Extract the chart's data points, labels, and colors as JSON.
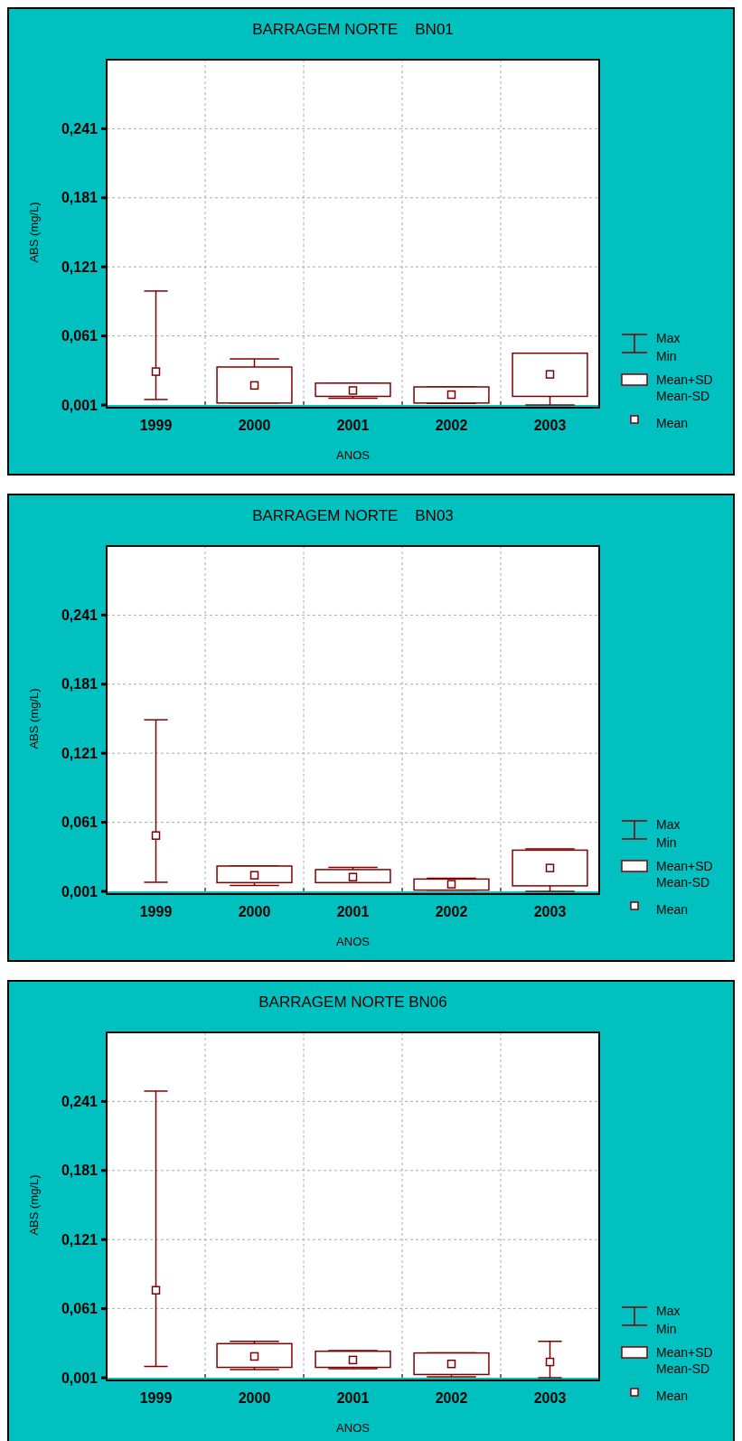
{
  "chart_data": [
    {
      "type": "box",
      "title": "BARRAGEM NORTE    BN01",
      "xlabel": "ANOS",
      "ylabel": "ABS (mg/L)",
      "categories": [
        "1999",
        "2000",
        "2001",
        "2002",
        "2003"
      ],
      "ylim": [
        0.001,
        0.301
      ],
      "yticks": [
        {
          "value": 0.001,
          "label": "0,001"
        },
        {
          "value": 0.061,
          "label": "0,061"
        },
        {
          "value": 0.121,
          "label": "0,121"
        },
        {
          "value": 0.181,
          "label": "0,181"
        },
        {
          "value": 0.241,
          "label": "0,241"
        }
      ],
      "grid": true,
      "annotations": [
        "Max",
        "Min",
        "Mean+SD",
        "Mean-SD",
        "Mean"
      ],
      "series": [
        {
          "color": "#800000",
          "boxes": [
            null,
            {
              "low": 0.0027,
              "q1": 0.0027,
              "q3": 0.034,
              "high": 0.041,
              "mean": 0.018
            },
            {
              "low": 0.0069,
              "q1": 0.0085,
              "q3": 0.02,
              "high": 0.02,
              "mean": 0.0136
            },
            {
              "low": 0.0024,
              "q1": 0.0027,
              "q3": 0.0167,
              "high": 0.0167,
              "mean": 0.01
            },
            {
              "low": 0.001,
              "q1": 0.0085,
              "q3": 0.046,
              "high": 0.046,
              "mean": 0.0276
            }
          ]
        },
        {
          "type": "scatter",
          "color": "#800000",
          "values": [
            0.03,
            null,
            null,
            null,
            null
          ],
          "errors": [
            [
              0.0058,
              0.1
            ],
            null,
            null,
            null,
            null
          ]
        }
      ]
    },
    {
      "type": "box",
      "title": "BARRAGEM NORTE    BN03",
      "xlabel": "ANOS",
      "ylabel": "ABS (mg/L)",
      "categories": [
        "1999",
        "2000",
        "2001",
        "2002",
        "2003"
      ],
      "ylim": [
        0.001,
        0.301
      ],
      "yticks": [
        {
          "value": 0.001,
          "label": "0,001"
        },
        {
          "value": 0.061,
          "label": "0,061"
        },
        {
          "value": 0.121,
          "label": "0,121"
        },
        {
          "value": 0.181,
          "label": "0,181"
        },
        {
          "value": 0.241,
          "label": "0,241"
        }
      ],
      "grid": true,
      "annotations": [
        "Max",
        "Min",
        "Mean+SD",
        "Mean-SD",
        "Mean"
      ],
      "series": [
        {
          "color": "#800000",
          "boxes": [
            null,
            {
              "low": 0.0061,
              "q1": 0.0086,
              "q3": 0.023,
              "high": 0.023,
              "mean": 0.015
            },
            {
              "low": 0.0086,
              "q1": 0.0086,
              "q3": 0.0199,
              "high": 0.0218,
              "mean": 0.0134
            },
            {
              "low": 0.0021,
              "q1": 0.0021,
              "q3": 0.0117,
              "high": 0.0123,
              "mean": 0.0072
            },
            {
              "low": 0.001,
              "q1": 0.0058,
              "q3": 0.0368,
              "high": 0.0379,
              "mean": 0.0213
            }
          ]
        },
        {
          "type": "scatter",
          "color": "#800000",
          "values": [
            0.0495,
            null,
            null,
            null,
            null
          ],
          "errors": [
            [
              0.0089,
              0.15
            ],
            null,
            null,
            null,
            null
          ]
        }
      ]
    },
    {
      "type": "box",
      "title": "BARRAGEM NORTE BN06",
      "xlabel": "ANOS",
      "ylabel": "ABS (mg/L)",
      "categories": [
        "1999",
        "2000",
        "2001",
        "2002",
        "2003"
      ],
      "ylim": [
        0.001,
        0.301
      ],
      "yticks": [
        {
          "value": 0.001,
          "label": "0,001"
        },
        {
          "value": 0.061,
          "label": "0,061"
        },
        {
          "value": 0.121,
          "label": "0,121"
        },
        {
          "value": 0.181,
          "label": "0,181"
        },
        {
          "value": 0.241,
          "label": "0,241"
        }
      ],
      "grid": true,
      "annotations": [
        "Max",
        "Min",
        "Mean+SD",
        "Mean-SD",
        "Mean"
      ],
      "series": [
        {
          "color": "#800000",
          "boxes": [
            null,
            {
              "low": 0.008,
              "q1": 0.01,
              "q3": 0.0306,
              "high": 0.0326,
              "mean": 0.0195
            },
            {
              "low": 0.0088,
              "q1": 0.01,
              "q3": 0.024,
              "high": 0.0245,
              "mean": 0.0164
            },
            {
              "low": 0.0018,
              "q1": 0.0038,
              "q3": 0.0225,
              "high": 0.0225,
              "mean": 0.013
            },
            null
          ]
        },
        {
          "type": "scatter",
          "color": "#800000",
          "values": [
            0.077,
            null,
            null,
            null,
            0.0147
          ],
          "errors": [
            [
              0.0108,
              0.25
            ],
            null,
            null,
            null,
            [
              0.001,
              0.0326
            ]
          ]
        }
      ]
    }
  ]
}
